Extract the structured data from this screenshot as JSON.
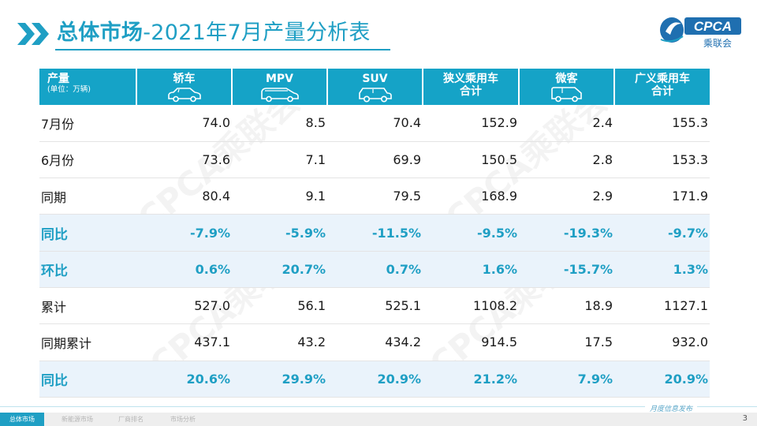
{
  "header": {
    "title_main": "总体市场",
    "title_rest": "-2021年7月产量分析表",
    "logo_text": "CPCA",
    "logo_sub": "乘联会"
  },
  "table": {
    "corner": {
      "label": "产量",
      "unit": "(单位：万辆)"
    },
    "columns": [
      {
        "line1": "轿车",
        "line2": "",
        "icon": "sedan-icon"
      },
      {
        "line1": "MPV",
        "line2": "",
        "icon": "mpv-icon"
      },
      {
        "line1": "SUV",
        "line2": "",
        "icon": "suv-icon"
      },
      {
        "line1": "狭义乘用车",
        "line2": "合计",
        "icon": ""
      },
      {
        "line1": "微客",
        "line2": "",
        "icon": "minivan-icon"
      },
      {
        "line1": "广义乘用车",
        "line2": "合计",
        "icon": ""
      }
    ],
    "rows": [
      {
        "label": "7月份",
        "values": [
          "74.0",
          "8.5",
          "70.4",
          "152.9",
          "2.4",
          "155.3"
        ],
        "highlight": false
      },
      {
        "label": "6月份",
        "values": [
          "73.6",
          "7.1",
          "69.9",
          "150.5",
          "2.8",
          "153.3"
        ],
        "highlight": false
      },
      {
        "label": "同期",
        "values": [
          "80.4",
          "9.1",
          "79.5",
          "168.9",
          "2.9",
          "171.9"
        ],
        "highlight": false
      },
      {
        "label": "同比",
        "values": [
          "-7.9%",
          "-5.9%",
          "-11.5%",
          "-9.5%",
          "-19.3%",
          "-9.7%"
        ],
        "highlight": true
      },
      {
        "label": "环比",
        "values": [
          "0.6%",
          "20.7%",
          "0.7%",
          "1.6%",
          "-15.7%",
          "1.3%"
        ],
        "highlight": true
      },
      {
        "label": "累计",
        "values": [
          "527.0",
          "56.1",
          "525.1",
          "1108.2",
          "18.9",
          "1127.1"
        ],
        "highlight": false
      },
      {
        "label": "同期累计",
        "values": [
          "437.1",
          "43.2",
          "434.2",
          "914.5",
          "17.5",
          "932.0"
        ],
        "highlight": false
      },
      {
        "label": "同比",
        "values": [
          "20.6%",
          "29.9%",
          "20.9%",
          "21.2%",
          "7.9%",
          "20.9%"
        ],
        "highlight": true
      }
    ]
  },
  "footer": {
    "tabs": [
      "总体市场",
      "新能源市场",
      "厂商排名",
      "市场分析"
    ],
    "active_tab": 0,
    "label": "月度信息发布",
    "page": "3"
  },
  "colors": {
    "accent": "#1f9fc4",
    "header_bg": "#15a3c7",
    "highlight_row": "#eaf3fb"
  }
}
